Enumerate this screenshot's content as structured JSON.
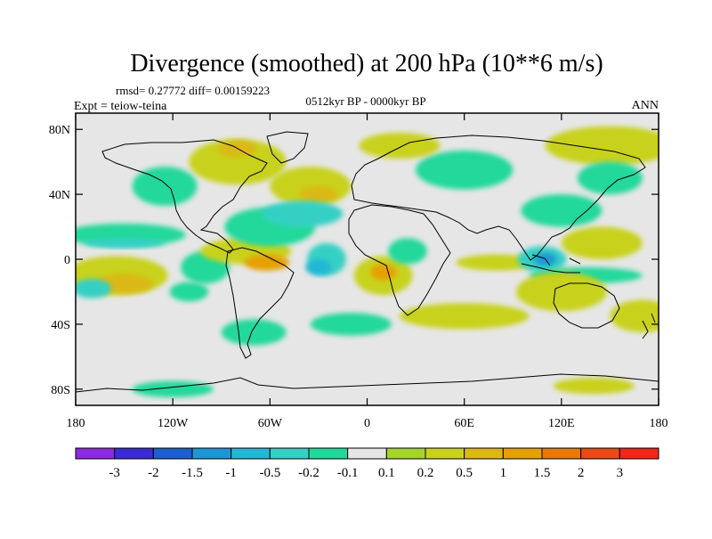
{
  "title": "Divergence (smoothed) at 200 hPa (10**6 m/s)",
  "stats": "rmsd= 0.27772 diff= 0.00159223",
  "experiment": "Expt = teiow-teina",
  "period": "0512kyr BP - 0000kyr BP",
  "season": "ANN",
  "axes": {
    "lat_ticks": [
      {
        "label": "80N",
        "lat": 80
      },
      {
        "label": "40N",
        "lat": 40
      },
      {
        "label": "0",
        "lat": 0
      },
      {
        "label": "40S",
        "lat": -40
      },
      {
        "label": "80S",
        "lat": -80
      }
    ],
    "lon_ticks": [
      {
        "label": "180",
        "lon": -180
      },
      {
        "label": "120W",
        "lon": -120
      },
      {
        "label": "60W",
        "lon": -60
      },
      {
        "label": "0",
        "lon": 0
      },
      {
        "label": "60E",
        "lon": 60
      },
      {
        "label": "120E",
        "lon": 120
      },
      {
        "label": "180",
        "lon": 180
      }
    ],
    "lon_range": [
      -180,
      180
    ],
    "lat_range": [
      -90,
      90
    ]
  },
  "colorbar": {
    "colors": [
      "#8a2be2",
      "#3b2bd6",
      "#1c5fd0",
      "#1d96d6",
      "#22b8d4",
      "#34d0c4",
      "#20d89a",
      "#e6e6e6",
      "#a5d42a",
      "#c8d21e",
      "#dcb814",
      "#e6a000",
      "#e87808",
      "#ec4a14",
      "#f2261c"
    ],
    "labels": [
      "-3",
      "-2",
      "-1.5",
      "-1",
      "-0.5",
      "-0.2",
      "-0.1",
      "0.1",
      "0.2",
      "0.5",
      "1",
      "1.5",
      "2",
      "3"
    ]
  },
  "regions": [
    {
      "lon": -150,
      "lat": 15,
      "rx": 38,
      "ry": 7,
      "level": -0.15
    },
    {
      "lon": -150,
      "lat": 10,
      "rx": 25,
      "ry": 3,
      "level": -0.3
    },
    {
      "lon": -155,
      "lat": -10,
      "rx": 32,
      "ry": 12,
      "level": 0.2
    },
    {
      "lon": -150,
      "lat": -15,
      "rx": 18,
      "ry": 6,
      "level": 0.6
    },
    {
      "lon": -170,
      "lat": -18,
      "rx": 12,
      "ry": 6,
      "level": -0.3
    },
    {
      "lon": -100,
      "lat": -5,
      "rx": 15,
      "ry": 10,
      "level": -0.15
    },
    {
      "lon": -110,
      "lat": -20,
      "rx": 12,
      "ry": 6,
      "level": -0.15
    },
    {
      "lon": -75,
      "lat": 5,
      "rx": 28,
      "ry": 8,
      "level": 0.3
    },
    {
      "lon": -62,
      "lat": -2,
      "rx": 14,
      "ry": 5,
      "level": 1.2
    },
    {
      "lon": -60,
      "lat": 20,
      "rx": 28,
      "ry": 12,
      "level": -0.15
    },
    {
      "lon": -80,
      "lat": 60,
      "rx": 30,
      "ry": 14,
      "level": 0.25
    },
    {
      "lon": -80,
      "lat": 68,
      "rx": 12,
      "ry": 5,
      "level": 0.6
    },
    {
      "lon": -125,
      "lat": 45,
      "rx": 20,
      "ry": 12,
      "level": -0.15
    },
    {
      "lon": -35,
      "lat": 45,
      "rx": 25,
      "ry": 12,
      "level": 0.3
    },
    {
      "lon": -30,
      "lat": 40,
      "rx": 12,
      "ry": 5,
      "level": 0.7
    },
    {
      "lon": -40,
      "lat": 28,
      "rx": 25,
      "ry": 8,
      "level": -0.3
    },
    {
      "lon": -25,
      "lat": 0,
      "rx": 12,
      "ry": 10,
      "level": -0.3
    },
    {
      "lon": -30,
      "lat": -5,
      "rx": 8,
      "ry": 5,
      "level": -0.7
    },
    {
      "lon": 10,
      "lat": -10,
      "rx": 18,
      "ry": 12,
      "level": 0.4
    },
    {
      "lon": 10,
      "lat": -8,
      "rx": 8,
      "ry": 5,
      "level": 1.4
    },
    {
      "lon": 25,
      "lat": 5,
      "rx": 12,
      "ry": 8,
      "level": -0.15
    },
    {
      "lon": 60,
      "lat": 55,
      "rx": 30,
      "ry": 12,
      "level": -0.2
    },
    {
      "lon": 20,
      "lat": 70,
      "rx": 25,
      "ry": 8,
      "level": 0.3
    },
    {
      "lon": 150,
      "lat": 70,
      "rx": 40,
      "ry": 12,
      "level": 0.2
    },
    {
      "lon": 120,
      "lat": 30,
      "rx": 25,
      "ry": 10,
      "level": -0.15
    },
    {
      "lon": 150,
      "lat": 50,
      "rx": 20,
      "ry": 10,
      "level": -0.15
    },
    {
      "lon": 80,
      "lat": -2,
      "rx": 25,
      "ry": 5,
      "level": 0.3
    },
    {
      "lon": 108,
      "lat": 0,
      "rx": 15,
      "ry": 8,
      "level": -0.3
    },
    {
      "lon": 110,
      "lat": 0,
      "rx": 7,
      "ry": 4,
      "level": -1.2
    },
    {
      "lon": 145,
      "lat": 10,
      "rx": 25,
      "ry": 10,
      "level": 0.4
    },
    {
      "lon": 135,
      "lat": -10,
      "rx": 35,
      "ry": 5,
      "level": -0.15
    },
    {
      "lon": 120,
      "lat": -20,
      "rx": 28,
      "ry": 12,
      "level": 0.2
    },
    {
      "lon": 60,
      "lat": -35,
      "rx": 40,
      "ry": 8,
      "level": 0.2
    },
    {
      "lon": -10,
      "lat": -40,
      "rx": 25,
      "ry": 7,
      "level": -0.15
    },
    {
      "lon": -70,
      "lat": -45,
      "rx": 20,
      "ry": 8,
      "level": -0.15
    },
    {
      "lon": 170,
      "lat": -35,
      "rx": 20,
      "ry": 10,
      "level": 0.3
    },
    {
      "lon": -120,
      "lat": -80,
      "rx": 25,
      "ry": 5,
      "level": -0.15
    },
    {
      "lon": 140,
      "lat": -78,
      "rx": 25,
      "ry": 5,
      "level": 0.2
    }
  ]
}
